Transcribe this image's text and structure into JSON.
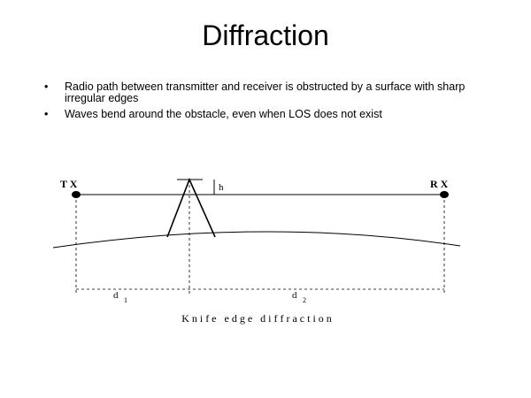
{
  "slide": {
    "title": "Diffraction",
    "bullets": [
      "Radio path between transmitter and receiver is obstructed by a surface with sharp irregular edges",
      "Waves bend around the obstacle, even when LOS does not exist"
    ]
  },
  "diagram": {
    "tx_label": "T X",
    "rx_label": "R X",
    "height_label": "h",
    "d1_label": "d",
    "d1_sub": "1",
    "d2_label": "d",
    "d2_sub": "2",
    "caption": "K n i f e   e d g e   d i f f r a c t i o n"
  }
}
